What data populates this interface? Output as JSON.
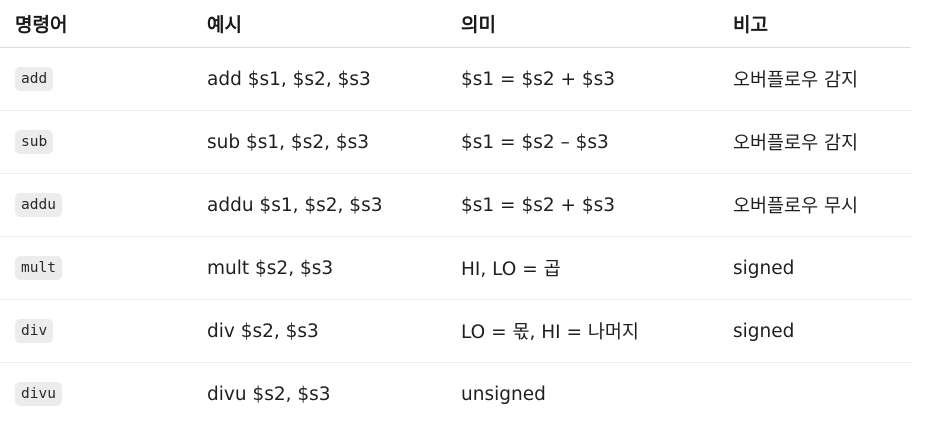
{
  "table": {
    "headers": [
      "명령어",
      "예시",
      "의미",
      "비고"
    ],
    "rows": [
      {
        "cmd": "add",
        "example": "add $s1, $s2, $s3",
        "meaning": "$s1 = $s2 + $s3",
        "note": "오버플로우 감지"
      },
      {
        "cmd": "sub",
        "example": "sub $s1, $s2, $s3",
        "meaning": "$s1 = $s2 – $s3",
        "note": "오버플로우 감지"
      },
      {
        "cmd": "addu",
        "example": "addu $s1, $s2, $s3",
        "meaning": "$s1 = $s2 + $s3",
        "note": "오버플로우 무시"
      },
      {
        "cmd": "mult",
        "example": "mult $s2, $s3",
        "meaning": "HI, LO = 곱",
        "note": "signed"
      },
      {
        "cmd": "div",
        "example": "div $s2, $s3",
        "meaning": "LO = 몫, HI = 나머지",
        "note": "signed"
      },
      {
        "cmd": "divu",
        "example": "divu $s2, $s3",
        "meaning": "unsigned",
        "note": ""
      }
    ]
  }
}
